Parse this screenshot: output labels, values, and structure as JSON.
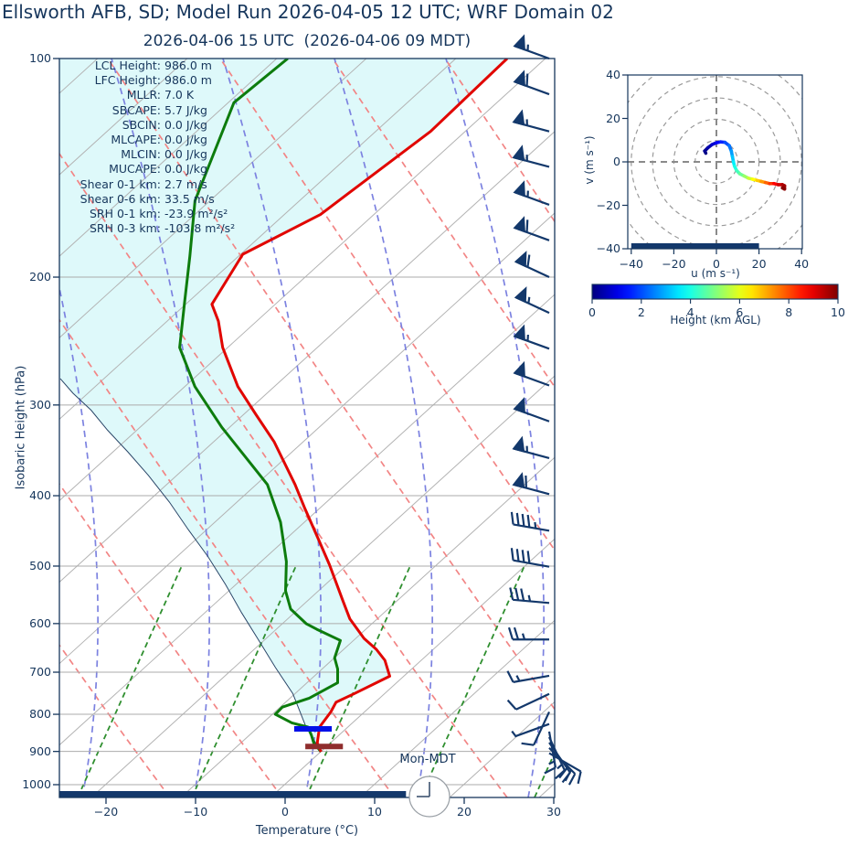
{
  "header": {
    "title": "Ellsworth AFB, SD; Model Run 2026-04-05 12 UTC; WRF Domain 02",
    "subtitle": "2026-04-06 15 UTC  (2026-04-06 09 MDT)"
  },
  "skewt": {
    "ylabel": "Isobaric Height (hPa)",
    "xlabel": "Temperature (°C)",
    "x_ticks": [
      -20,
      -10,
      0,
      10,
      20,
      30
    ],
    "y_ticks": [
      100,
      200,
      300,
      400,
      500,
      600,
      700,
      800,
      900,
      1000
    ],
    "clock_label": "Mon-MDT",
    "annotations": [
      {
        "label": "LCL Height:",
        "value": "986.0 m"
      },
      {
        "label": "LFC Height:",
        "value": "986.0 m"
      },
      {
        "label": "MLLR:",
        "value": "7.0 K"
      },
      {
        "label": "SBCAPE:",
        "value": "5.7 J/kg"
      },
      {
        "label": "SBCIN:",
        "value": "0.0 J/kg"
      },
      {
        "label": "MLCAPE:",
        "value": "0.0 J/kg"
      },
      {
        "label": "MLCIN:",
        "value": "0.0 J/kg"
      },
      {
        "label": "MUCAPE:",
        "value": "0.0 J/kg"
      },
      {
        "label": "Shear 0-1 km:",
        "value": "2.7 m/s"
      },
      {
        "label": "Shear 0-6 km:",
        "value": "33.5 m/s"
      },
      {
        "label": "SRH 0-1 km:",
        "value": "-23.9 m²/s²"
      },
      {
        "label": "SRH 0-3 km:",
        "value": "-103.8 m²/s²"
      }
    ]
  },
  "hodograph": {
    "xlabel": "u (m s⁻¹)",
    "ylabel": "v (m s⁻¹)",
    "x_ticks": [
      -40,
      -20,
      0,
      20,
      40
    ],
    "y_ticks": [
      40,
      20,
      0,
      -20,
      -40
    ],
    "ring_radii": [
      10,
      20,
      30,
      40,
      50
    ]
  },
  "colorbar": {
    "label": "Height (km AGL)",
    "ticks": [
      0,
      2,
      4,
      6,
      8,
      10
    ],
    "min": 0,
    "max": 10
  },
  "colors": {
    "text_navy": "#16365c",
    "temperature_line": "#e10600",
    "dewpoint_line": "#0d7c0d",
    "parcel_line": "#2a4668",
    "isotherm_gray": "#b3b3b3",
    "pressure_gridline": "#ababab",
    "dry_adiabat_dashed": "#f28585",
    "moist_adiabat_dashed": "#7c82e0",
    "mixing_ratio_dashed": "#2f8f2f",
    "shade_cyan": "rgba(0,210,220,0.13)",
    "barb_navy": "#13386b",
    "lcl_bar_blue": "#0010e8",
    "sfc_bar_maroon": "#8f2d2d",
    "hodo_ring_gray": "#9a9a9a",
    "clock_stroke": "#9aa0a6"
  },
  "chart_data": {
    "type": "skewt-sounding",
    "pressure_axis_hpa": {
      "top": 100,
      "bottom": 1041,
      "gridline_step": 100
    },
    "temperature_axis_c": {
      "left_at_surface": -25.2,
      "right": 30,
      "tick_step": 10
    },
    "skew_deg_c_per_decade": 101,
    "temperature_profile_p_t": [
      [
        901,
        -1.6
      ],
      [
        876,
        -3.1
      ],
      [
        833,
        -4.8
      ],
      [
        794,
        -5.4
      ],
      [
        770,
        -6.0
      ],
      [
        749,
        -5.0
      ],
      [
        709,
        -3.2
      ],
      [
        674,
        -5.7
      ],
      [
        651,
        -8.0
      ],
      [
        629,
        -10.7
      ],
      [
        591,
        -14.7
      ],
      [
        558,
        -17.7
      ],
      [
        498,
        -23.6
      ],
      [
        459,
        -28.0
      ],
      [
        417,
        -33.2
      ],
      [
        386,
        -37.3
      ],
      [
        337,
        -44.9
      ],
      [
        309,
        -50.3
      ],
      [
        283,
        -55.7
      ],
      [
        250,
        -62.2
      ],
      [
        230,
        -65.9
      ],
      [
        218,
        -68.7
      ],
      [
        186,
        -71.4
      ],
      [
        164,
        -67.6
      ],
      [
        150,
        -66.9
      ],
      [
        126,
        -65.5
      ],
      [
        100,
        -65.9
      ]
    ],
    "dewpoint_profile_p_t": [
      [
        901,
        -1.6
      ],
      [
        876,
        -3.5
      ],
      [
        855,
        -4.7
      ],
      [
        833,
        -6.1
      ],
      [
        822,
        -8.4
      ],
      [
        800,
        -11.3
      ],
      [
        782,
        -11.4
      ],
      [
        760,
        -9.5
      ],
      [
        724,
        -8.2
      ],
      [
        693,
        -9.9
      ],
      [
        669,
        -11.6
      ],
      [
        633,
        -13.1
      ],
      [
        611,
        -17.1
      ],
      [
        600,
        -19.0
      ],
      [
        573,
        -22.5
      ],
      [
        541,
        -25.3
      ],
      [
        493,
        -28.8
      ],
      [
        435,
        -34.3
      ],
      [
        386,
        -40.4
      ],
      [
        322,
        -52.5
      ],
      [
        283,
        -60.5
      ],
      [
        250,
        -67.0
      ],
      [
        216,
        -72.1
      ],
      [
        187,
        -77.1
      ],
      [
        157,
        -83.3
      ],
      [
        115,
        -91.0
      ],
      [
        100,
        -90.4
      ]
    ],
    "parcel_profile_p_t": [
      [
        901,
        -1.6
      ],
      [
        830,
        -6.5
      ],
      [
        749,
        -11.9
      ],
      [
        690,
        -17.0
      ],
      [
        632,
        -22.3
      ],
      [
        580,
        -27.5
      ],
      [
        530,
        -32.8
      ],
      [
        485,
        -38.2
      ],
      [
        446,
        -43.6
      ],
      [
        408,
        -49.2
      ],
      [
        375,
        -54.8
      ],
      [
        348,
        -60.0
      ],
      [
        325,
        -64.9
      ],
      [
        305,
        -69.2
      ],
      [
        289,
        -73.3
      ],
      [
        276,
        -76.5
      ]
    ],
    "parcel_extension_p_t": [
      [
        220,
        -95
      ],
      [
        150,
        -117
      ],
      [
        100,
        -143
      ]
    ],
    "lcl_marker": {
      "pressure": 838,
      "temp_c": -5.3,
      "half_width_c": 2.1
    },
    "surface_marker": {
      "pressure": 886,
      "temp_c": -1.9,
      "half_width_c": 2.1
    },
    "wind_barbs_p_kt_dir": [
      [
        100,
        55,
        290
      ],
      [
        112,
        60,
        290
      ],
      [
        126,
        55,
        285
      ],
      [
        141,
        55,
        285
      ],
      [
        159,
        55,
        290
      ],
      [
        178,
        60,
        290
      ],
      [
        200,
        60,
        295
      ],
      [
        224,
        55,
        295
      ],
      [
        251,
        55,
        290
      ],
      [
        282,
        50,
        290
      ],
      [
        316,
        50,
        290
      ],
      [
        355,
        55,
        285
      ],
      [
        398,
        60,
        285
      ],
      [
        447,
        45,
        280
      ],
      [
        501,
        40,
        280
      ],
      [
        562,
        35,
        275
      ],
      [
        631,
        25,
        270
      ],
      [
        708,
        15,
        260
      ],
      [
        750,
        10,
        245
      ],
      [
        794,
        10,
        205
      ],
      [
        825,
        5,
        250
      ],
      [
        845,
        15,
        170
      ],
      [
        860,
        15,
        155
      ],
      [
        875,
        20,
        145
      ],
      [
        890,
        20,
        135
      ],
      [
        905,
        10,
        120
      ]
    ],
    "hodograph_trace_u_v_km": [
      [
        -5,
        4,
        0
      ],
      [
        -5.5,
        5,
        0.1
      ],
      [
        -4,
        6.5,
        0.3
      ],
      [
        -2,
        8,
        0.6
      ],
      [
        0,
        8.8,
        1.0
      ],
      [
        2,
        9.2,
        1.4
      ],
      [
        4,
        9,
        1.8
      ],
      [
        6,
        7.5,
        2.2
      ],
      [
        7,
        5,
        2.6
      ],
      [
        7.5,
        2.5,
        3.0
      ],
      [
        8,
        0,
        3.4
      ],
      [
        8.5,
        -2,
        3.8
      ],
      [
        9.5,
        -4,
        4.2
      ],
      [
        11,
        -5.5,
        4.6
      ],
      [
        13,
        -6.5,
        5.0
      ],
      [
        15,
        -7.5,
        5.5
      ],
      [
        17,
        -8,
        6.0
      ],
      [
        19,
        -8.5,
        6.5
      ],
      [
        21,
        -9,
        7.0
      ],
      [
        23,
        -9.5,
        7.5
      ],
      [
        25,
        -10,
        8.0
      ],
      [
        27,
        -10,
        8.5
      ],
      [
        29,
        -10.5,
        9.0
      ],
      [
        31,
        -10.5,
        9.4
      ],
      [
        32,
        -11,
        9.6
      ],
      [
        32,
        -12.5,
        9.8
      ],
      [
        31,
        -12,
        10
      ]
    ],
    "hodograph_axis_range": [
      -40,
      40
    ],
    "hodograph_bottom_bar_u": [
      -40,
      20
    ],
    "skew_bottom_bar_t": [
      -25.2,
      13.5
    ]
  }
}
